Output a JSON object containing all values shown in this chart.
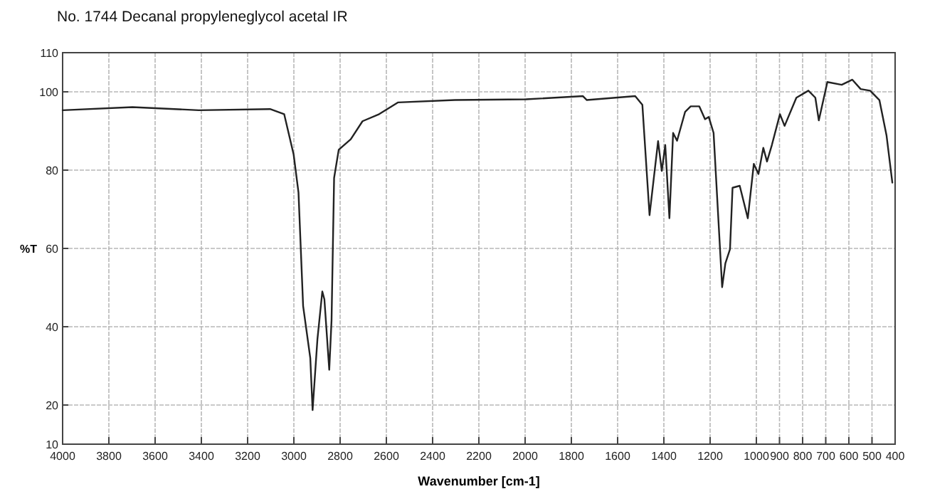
{
  "chart_data": {
    "type": "line",
    "title": "No. 1744 Decanal propyleneglycol acetal IR",
    "xlabel": "Wavenumber [cm-1]",
    "ylabel": "%T",
    "xlim": [
      4000,
      400
    ],
    "ylim": [
      10,
      110
    ],
    "xticks": [
      4000,
      3800,
      3600,
      3400,
      3200,
      3000,
      2800,
      2600,
      2400,
      2200,
      2000,
      1800,
      1600,
      1400,
      1200,
      1000,
      900,
      800,
      700,
      600,
      500,
      400
    ],
    "yticks": [
      10,
      20,
      40,
      60,
      80,
      100,
      110
    ],
    "grid": true,
    "marker": "none",
    "line_style": "solid",
    "series": [
      {
        "color": "#222222",
        "x": [
          4000,
          3698,
          3411,
          3103,
          3042,
          3001,
          2980,
          2960,
          2929,
          2919,
          2898,
          2877,
          2868,
          2847,
          2837,
          2826,
          2806,
          2754,
          2703,
          2631,
          2549,
          2303,
          1996,
          1750,
          1733,
          1524,
          1493,
          1462,
          1425,
          1409,
          1394,
          1376,
          1360,
          1343,
          1308,
          1284,
          1247,
          1222,
          1206,
          1185,
          1148,
          1134,
          1114,
          1103,
          1072,
          1037,
          1011,
          991,
          970,
          954,
          933,
          898,
          878,
          827,
          775,
          745,
          730,
          693,
          631,
          585,
          549,
          508,
          468,
          437,
          412
        ],
        "values": [
          95.3,
          96.1,
          95.3,
          95.6,
          94.3,
          84,
          74.3,
          45.3,
          32,
          18.7,
          36.9,
          49,
          47,
          29,
          41.7,
          78,
          85.2,
          87.9,
          92.5,
          94.3,
          97.3,
          97.9,
          98.1,
          98.9,
          97.9,
          98.9,
          96.7,
          68.5,
          87.4,
          79.8,
          86.4,
          67.7,
          89.5,
          87.5,
          94.9,
          96.3,
          96.3,
          93,
          93.6,
          89.5,
          50.1,
          56.2,
          59.8,
          75.5,
          76,
          67.7,
          81.6,
          79,
          85.7,
          82.2,
          86.4,
          94.3,
          91.3,
          98.5,
          100.3,
          98.5,
          92.7,
          102.5,
          101.8,
          103.1,
          100.7,
          100.3,
          97.9,
          88.8,
          76.8
        ]
      }
    ]
  }
}
